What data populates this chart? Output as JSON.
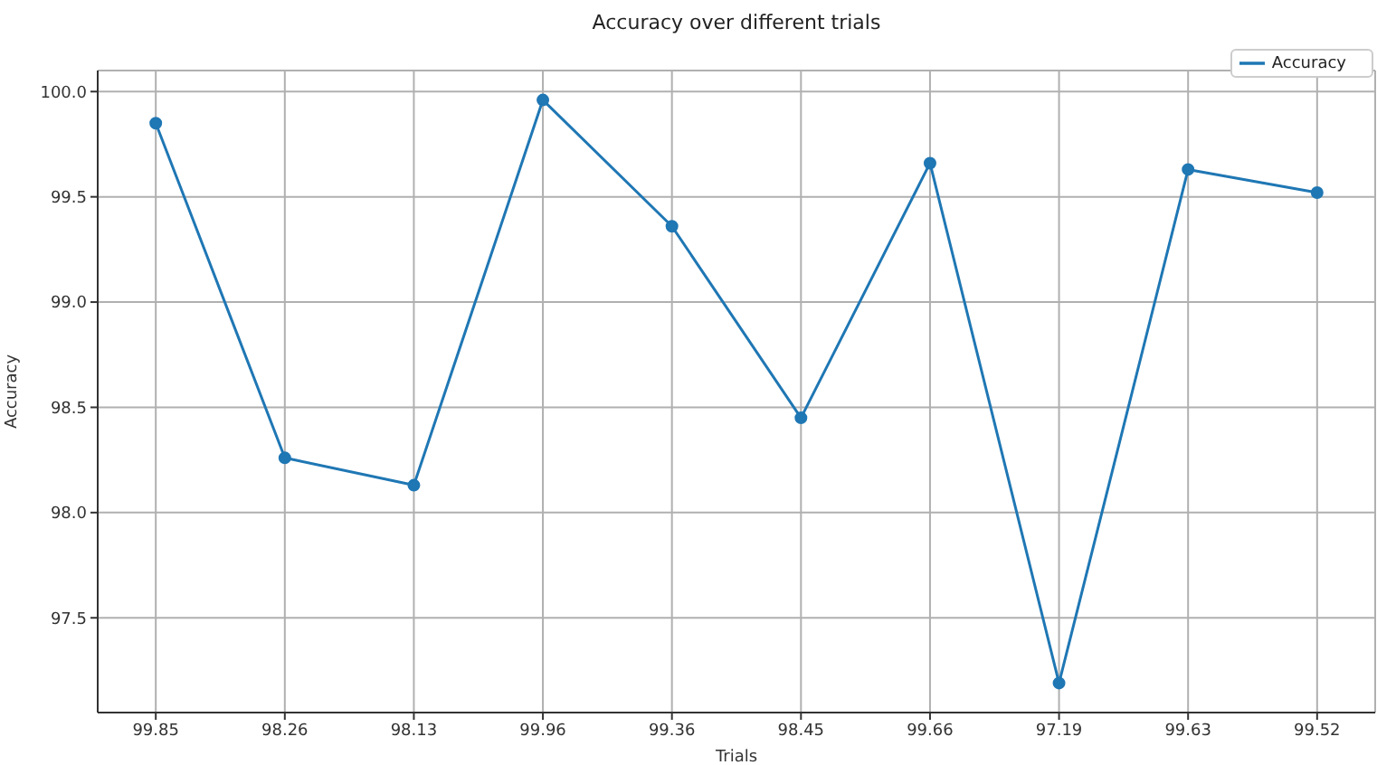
{
  "chart_data": {
    "type": "line",
    "title": "Accuracy over different trials",
    "xlabel": "Trials",
    "ylabel": "Accuracy",
    "categories": [
      "99.85",
      "98.26",
      "98.13",
      "99.96",
      "99.36",
      "98.45",
      "99.66",
      "97.19",
      "99.63",
      "99.52"
    ],
    "series": [
      {
        "name": "Accuracy",
        "color": "#1f77b4",
        "values": [
          99.85,
          98.26,
          98.13,
          99.96,
          99.36,
          98.45,
          99.66,
          97.19,
          99.63,
          99.52
        ]
      }
    ],
    "ylim": [
      97.05,
      100.1
    ],
    "yticks": [
      97.5,
      {
        "value": 98,
        "label": "98.0"
      },
      98.5,
      {
        "value": 99,
        "label": "99.0"
      },
      99.5,
      {
        "value": 100,
        "label": "100.0"
      }
    ],
    "grid": true,
    "legend": "top right",
    "marker": "circle",
    "line_style": "solid"
  }
}
